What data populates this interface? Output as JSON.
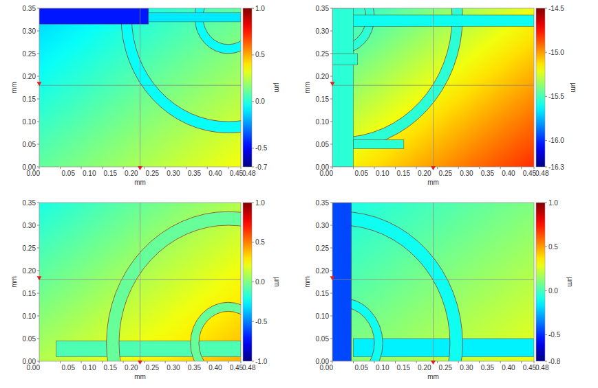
{
  "chart_data": [
    {
      "type": "heatmap",
      "xlabel": "mm",
      "ylabel": "mm",
      "xlim": [
        0,
        0.48
      ],
      "ylim": [
        0,
        0.35
      ],
      "xticks": [
        {
          "value": 0,
          "label": "0.00"
        },
        {
          "value": 0.05,
          "label": "0.05"
        },
        {
          "value": 0.1,
          "label": "0.10"
        },
        {
          "value": 0.15,
          "label": "0.15"
        },
        {
          "value": 0.2,
          "label": "0.20"
        },
        {
          "value": 0.25,
          "label": "0.25"
        },
        {
          "value": 0.3,
          "label": "0.30"
        },
        {
          "value": 0.35,
          "label": "0.35"
        },
        {
          "value": 0.4,
          "label": "0.40"
        },
        {
          "value": 0.45,
          "label": "0.45"
        },
        {
          "value": 0.48,
          "label": "0.48"
        }
      ],
      "yticks": [
        {
          "value": 0,
          "label": "0.00"
        },
        {
          "value": 0.05,
          "label": "0.05"
        },
        {
          "value": 0.1,
          "label": "0.10"
        },
        {
          "value": 0.15,
          "label": "0.15"
        },
        {
          "value": 0.2,
          "label": "0.20"
        },
        {
          "value": 0.25,
          "label": "0.25"
        },
        {
          "value": 0.3,
          "label": "0.30"
        },
        {
          "value": 0.35,
          "label": "0.35"
        }
      ],
      "colorbar": {
        "label": "µm",
        "range": [
          -0.7,
          1.0
        ],
        "ticks": [
          {
            "value": 1,
            "label": "1.0"
          },
          0.5,
          {
            "value": 0,
            "label": "0.0"
          },
          -0.5,
          -0.7
        ]
      },
      "background": {
        "top_left": -0.15,
        "bottom_right": 0.35
      },
      "features": [
        {
          "type": "ring",
          "center": [
            0.45,
            0.33
          ],
          "radius": [
            0.23,
            0.255
          ],
          "value": -0.05
        },
        {
          "type": "ring",
          "center": [
            0.45,
            0.33
          ],
          "radius": [
            0.06,
            0.08
          ],
          "value": -0.05
        },
        {
          "type": "rect",
          "x": [
            0,
            0.26
          ],
          "y": [
            0.315,
            0.35
          ],
          "value": -0.45
        },
        {
          "type": "rect",
          "x": [
            0.26,
            0.48
          ],
          "y": [
            0.32,
            0.34
          ],
          "value": -0.1
        }
      ],
      "crosshair": {
        "x": 0.24,
        "y": 0.18
      }
    },
    {
      "type": "heatmap",
      "xlabel": "mm",
      "ylabel": "mm",
      "xlim": [
        0,
        0.48
      ],
      "ylim": [
        0,
        0.35
      ],
      "xticks": [
        {
          "value": 0,
          "label": "0.00"
        },
        {
          "value": 0.05,
          "label": "0.05"
        },
        {
          "value": 0.1,
          "label": "0.10"
        },
        {
          "value": 0.15,
          "label": "0.15"
        },
        {
          "value": 0.2,
          "label": "0.20"
        },
        {
          "value": 0.25,
          "label": "0.25"
        },
        {
          "value": 0.3,
          "label": "0.30"
        },
        {
          "value": 0.35,
          "label": "0.35"
        },
        {
          "value": 0.4,
          "label": "0.40"
        },
        {
          "value": 0.45,
          "label": "0.45"
        },
        {
          "value": 0.48,
          "label": "0.48"
        }
      ],
      "yticks": [
        {
          "value": 0,
          "label": "0.00"
        },
        {
          "value": 0.05,
          "label": "0.05"
        },
        {
          "value": 0.1,
          "label": "0.10"
        },
        {
          "value": 0.15,
          "label": "0.15"
        },
        {
          "value": 0.2,
          "label": "0.20"
        },
        {
          "value": 0.25,
          "label": "0.25"
        },
        {
          "value": 0.3,
          "label": "0.30"
        },
        {
          "value": 0.35,
          "label": "0.35"
        }
      ],
      "colorbar": {
        "label": "µm",
        "range": [
          -16.3,
          -14.5
        ],
        "ticks": [
          -14.5,
          {
            "value": -15,
            "label": "-15.0"
          },
          -15.5,
          {
            "value": -16,
            "label": "-16.0"
          },
          -16.3
        ]
      },
      "background": {
        "top_left": -15.6,
        "bottom_right": -14.8
      },
      "features": [
        {
          "type": "ring",
          "center": [
            0.02,
            0.33
          ],
          "radius": [
            0.265,
            0.29
          ],
          "value": -15.55
        },
        {
          "type": "ring",
          "center": [
            0.02,
            0.33
          ],
          "radius": [
            0.06,
            0.08
          ],
          "value": -15.55
        },
        {
          "type": "rect",
          "x": [
            0,
            0.48
          ],
          "y": [
            0.31,
            0.335
          ],
          "value": -15.6
        },
        {
          "type": "rect",
          "x": [
            0,
            0.05
          ],
          "y": [
            0,
            0.35
          ],
          "value": -15.55
        },
        {
          "type": "rect",
          "x": [
            0.05,
            0.17
          ],
          "y": [
            0.04,
            0.06
          ],
          "value": -15.55
        },
        {
          "type": "rect",
          "x": [
            0,
            0.06
          ],
          "y": [
            0.225,
            0.25
          ],
          "value": -15.55
        }
      ],
      "crosshair": {
        "x": 0.24,
        "y": 0.18
      }
    },
    {
      "type": "heatmap",
      "xlabel": "mm",
      "ylabel": "mm",
      "xlim": [
        0,
        0.48
      ],
      "ylim": [
        0,
        0.35
      ],
      "xticks": [
        {
          "value": 0,
          "label": "0.00"
        },
        {
          "value": 0.05,
          "label": "0.05"
        },
        {
          "value": 0.1,
          "label": "0.10"
        },
        {
          "value": 0.15,
          "label": "0.15"
        },
        {
          "value": 0.2,
          "label": "0.20"
        },
        {
          "value": 0.25,
          "label": "0.25"
        },
        {
          "value": 0.3,
          "label": "0.30"
        },
        {
          "value": 0.35,
          "label": "0.35"
        },
        {
          "value": 0.4,
          "label": "0.40"
        },
        {
          "value": 0.45,
          "label": "0.45"
        },
        {
          "value": 0.48,
          "label": "0.48"
        }
      ],
      "yticks": [
        {
          "value": 0,
          "label": "0.00"
        },
        {
          "value": 0.05,
          "label": "0.05"
        },
        {
          "value": 0.1,
          "label": "0.10"
        },
        {
          "value": 0.15,
          "label": "0.15"
        },
        {
          "value": 0.2,
          "label": "0.20"
        },
        {
          "value": 0.25,
          "label": "0.25"
        },
        {
          "value": 0.3,
          "label": "0.30"
        },
        {
          "value": 0.35,
          "label": "0.35"
        }
      ],
      "colorbar": {
        "label": "µm",
        "range": [
          -1.0,
          1.0
        ],
        "ticks": [
          {
            "value": 1,
            "label": "1.0"
          },
          0.5,
          {
            "value": 0,
            "label": "0.0"
          },
          -0.5,
          {
            "value": -1,
            "label": "-1.0"
          }
        ]
      },
      "background": {
        "top_left": -0.2,
        "bottom_right": 0.4
      },
      "features": [
        {
          "type": "rect",
          "x": [
            0.04,
            0.48
          ],
          "y": [
            0.01,
            0.045
          ],
          "value": -0.1
        },
        {
          "type": "ring",
          "center": [
            0.45,
            0.04
          ],
          "radius": [
            0.26,
            0.29
          ],
          "value": -0.05
        },
        {
          "type": "ring",
          "center": [
            0.45,
            0.04
          ],
          "radius": [
            0.07,
            0.09
          ],
          "value": -0.05
        }
      ],
      "crosshair": {
        "x": 0.24,
        "y": 0.18
      }
    },
    {
      "type": "heatmap",
      "xlabel": "mm",
      "ylabel": "mm",
      "xlim": [
        0,
        0.48
      ],
      "ylim": [
        0,
        0.35
      ],
      "xticks": [
        {
          "value": 0,
          "label": "0.00"
        },
        {
          "value": 0.05,
          "label": "0.05"
        },
        {
          "value": 0.1,
          "label": "0.10"
        },
        {
          "value": 0.15,
          "label": "0.15"
        },
        {
          "value": 0.2,
          "label": "0.20"
        },
        {
          "value": 0.25,
          "label": "0.25"
        },
        {
          "value": 0.3,
          "label": "0.30"
        },
        {
          "value": 0.35,
          "label": "0.35"
        },
        {
          "value": 0.4,
          "label": "0.40"
        },
        {
          "value": 0.45,
          "label": "0.45"
        },
        {
          "value": 0.48,
          "label": "0.48"
        }
      ],
      "yticks": [
        {
          "value": 0,
          "label": "0.00"
        },
        {
          "value": 0.05,
          "label": "0.05"
        },
        {
          "value": 0.1,
          "label": "0.10"
        },
        {
          "value": 0.15,
          "label": "0.15"
        },
        {
          "value": 0.2,
          "label": "0.20"
        },
        {
          "value": 0.25,
          "label": "0.25"
        },
        {
          "value": 0.3,
          "label": "0.30"
        },
        {
          "value": 0.35,
          "label": "0.35"
        }
      ],
      "colorbar": {
        "label": "µm",
        "range": [
          -0.8,
          1.0
        ],
        "ticks": [
          {
            "value": 1,
            "label": "1.0"
          },
          0.5,
          {
            "value": 0,
            "label": "0.0"
          },
          -0.5,
          -0.8
        ]
      },
      "background": {
        "top_left": -0.1,
        "bottom_right": 0.3
      },
      "features": [
        {
          "type": "rect",
          "x": [
            0.05,
            0.48
          ],
          "y": [
            0.01,
            0.05
          ],
          "value": -0.15
        },
        {
          "type": "ring",
          "center": [
            0.02,
            0.04
          ],
          "radius": [
            0.26,
            0.29
          ],
          "value": -0.1
        },
        {
          "type": "ring",
          "center": [
            0.02,
            0.04
          ],
          "radius": [
            0.08,
            0.1
          ],
          "value": -0.1
        },
        {
          "type": "rect",
          "x": [
            0,
            0.045
          ],
          "y": [
            0,
            0.35
          ],
          "value": -0.45
        }
      ],
      "crosshair": {
        "x": 0.24,
        "y": 0.18
      }
    }
  ]
}
